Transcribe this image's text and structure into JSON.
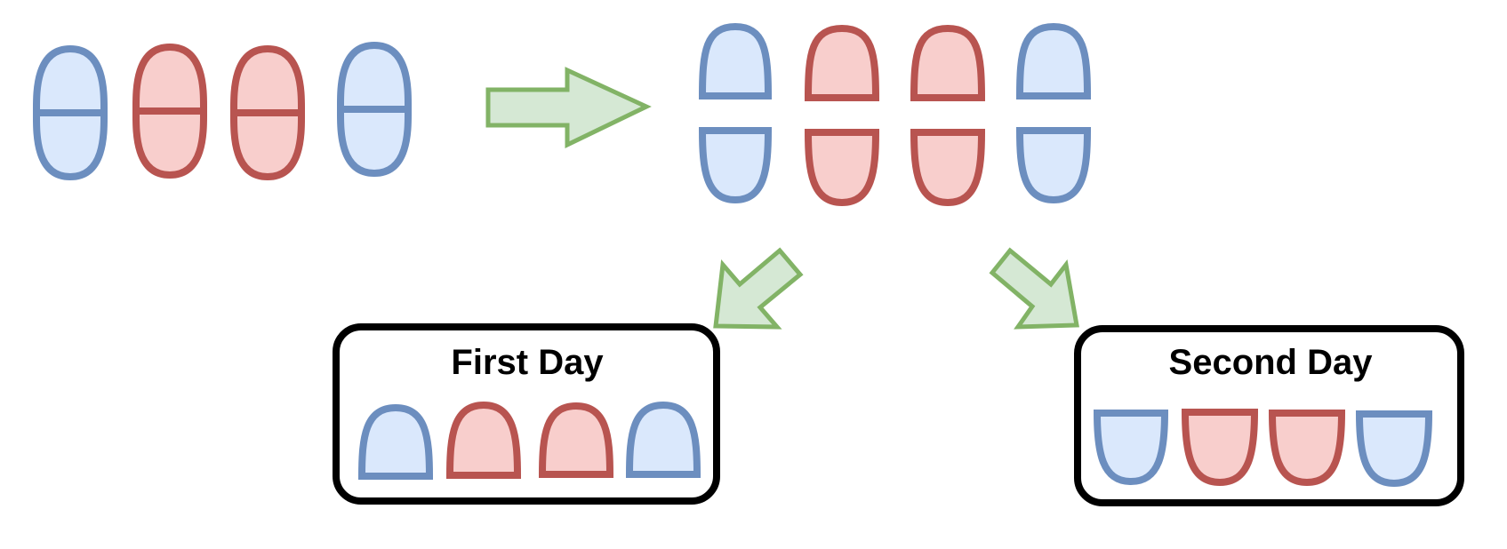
{
  "colors": {
    "blue_fill": "#dae8fc",
    "blue_stroke": "#6c8ebf",
    "red_fill": "#f8cecc",
    "red_stroke": "#b85450",
    "arrow_fill": "#d5e8d4",
    "arrow_stroke": "#82b366",
    "box_stroke": "#000000"
  },
  "pill_colors": [
    "blue",
    "red",
    "red",
    "blue"
  ],
  "boxes": {
    "first": {
      "label": "First Day"
    },
    "second": {
      "label": "Second Day"
    }
  }
}
